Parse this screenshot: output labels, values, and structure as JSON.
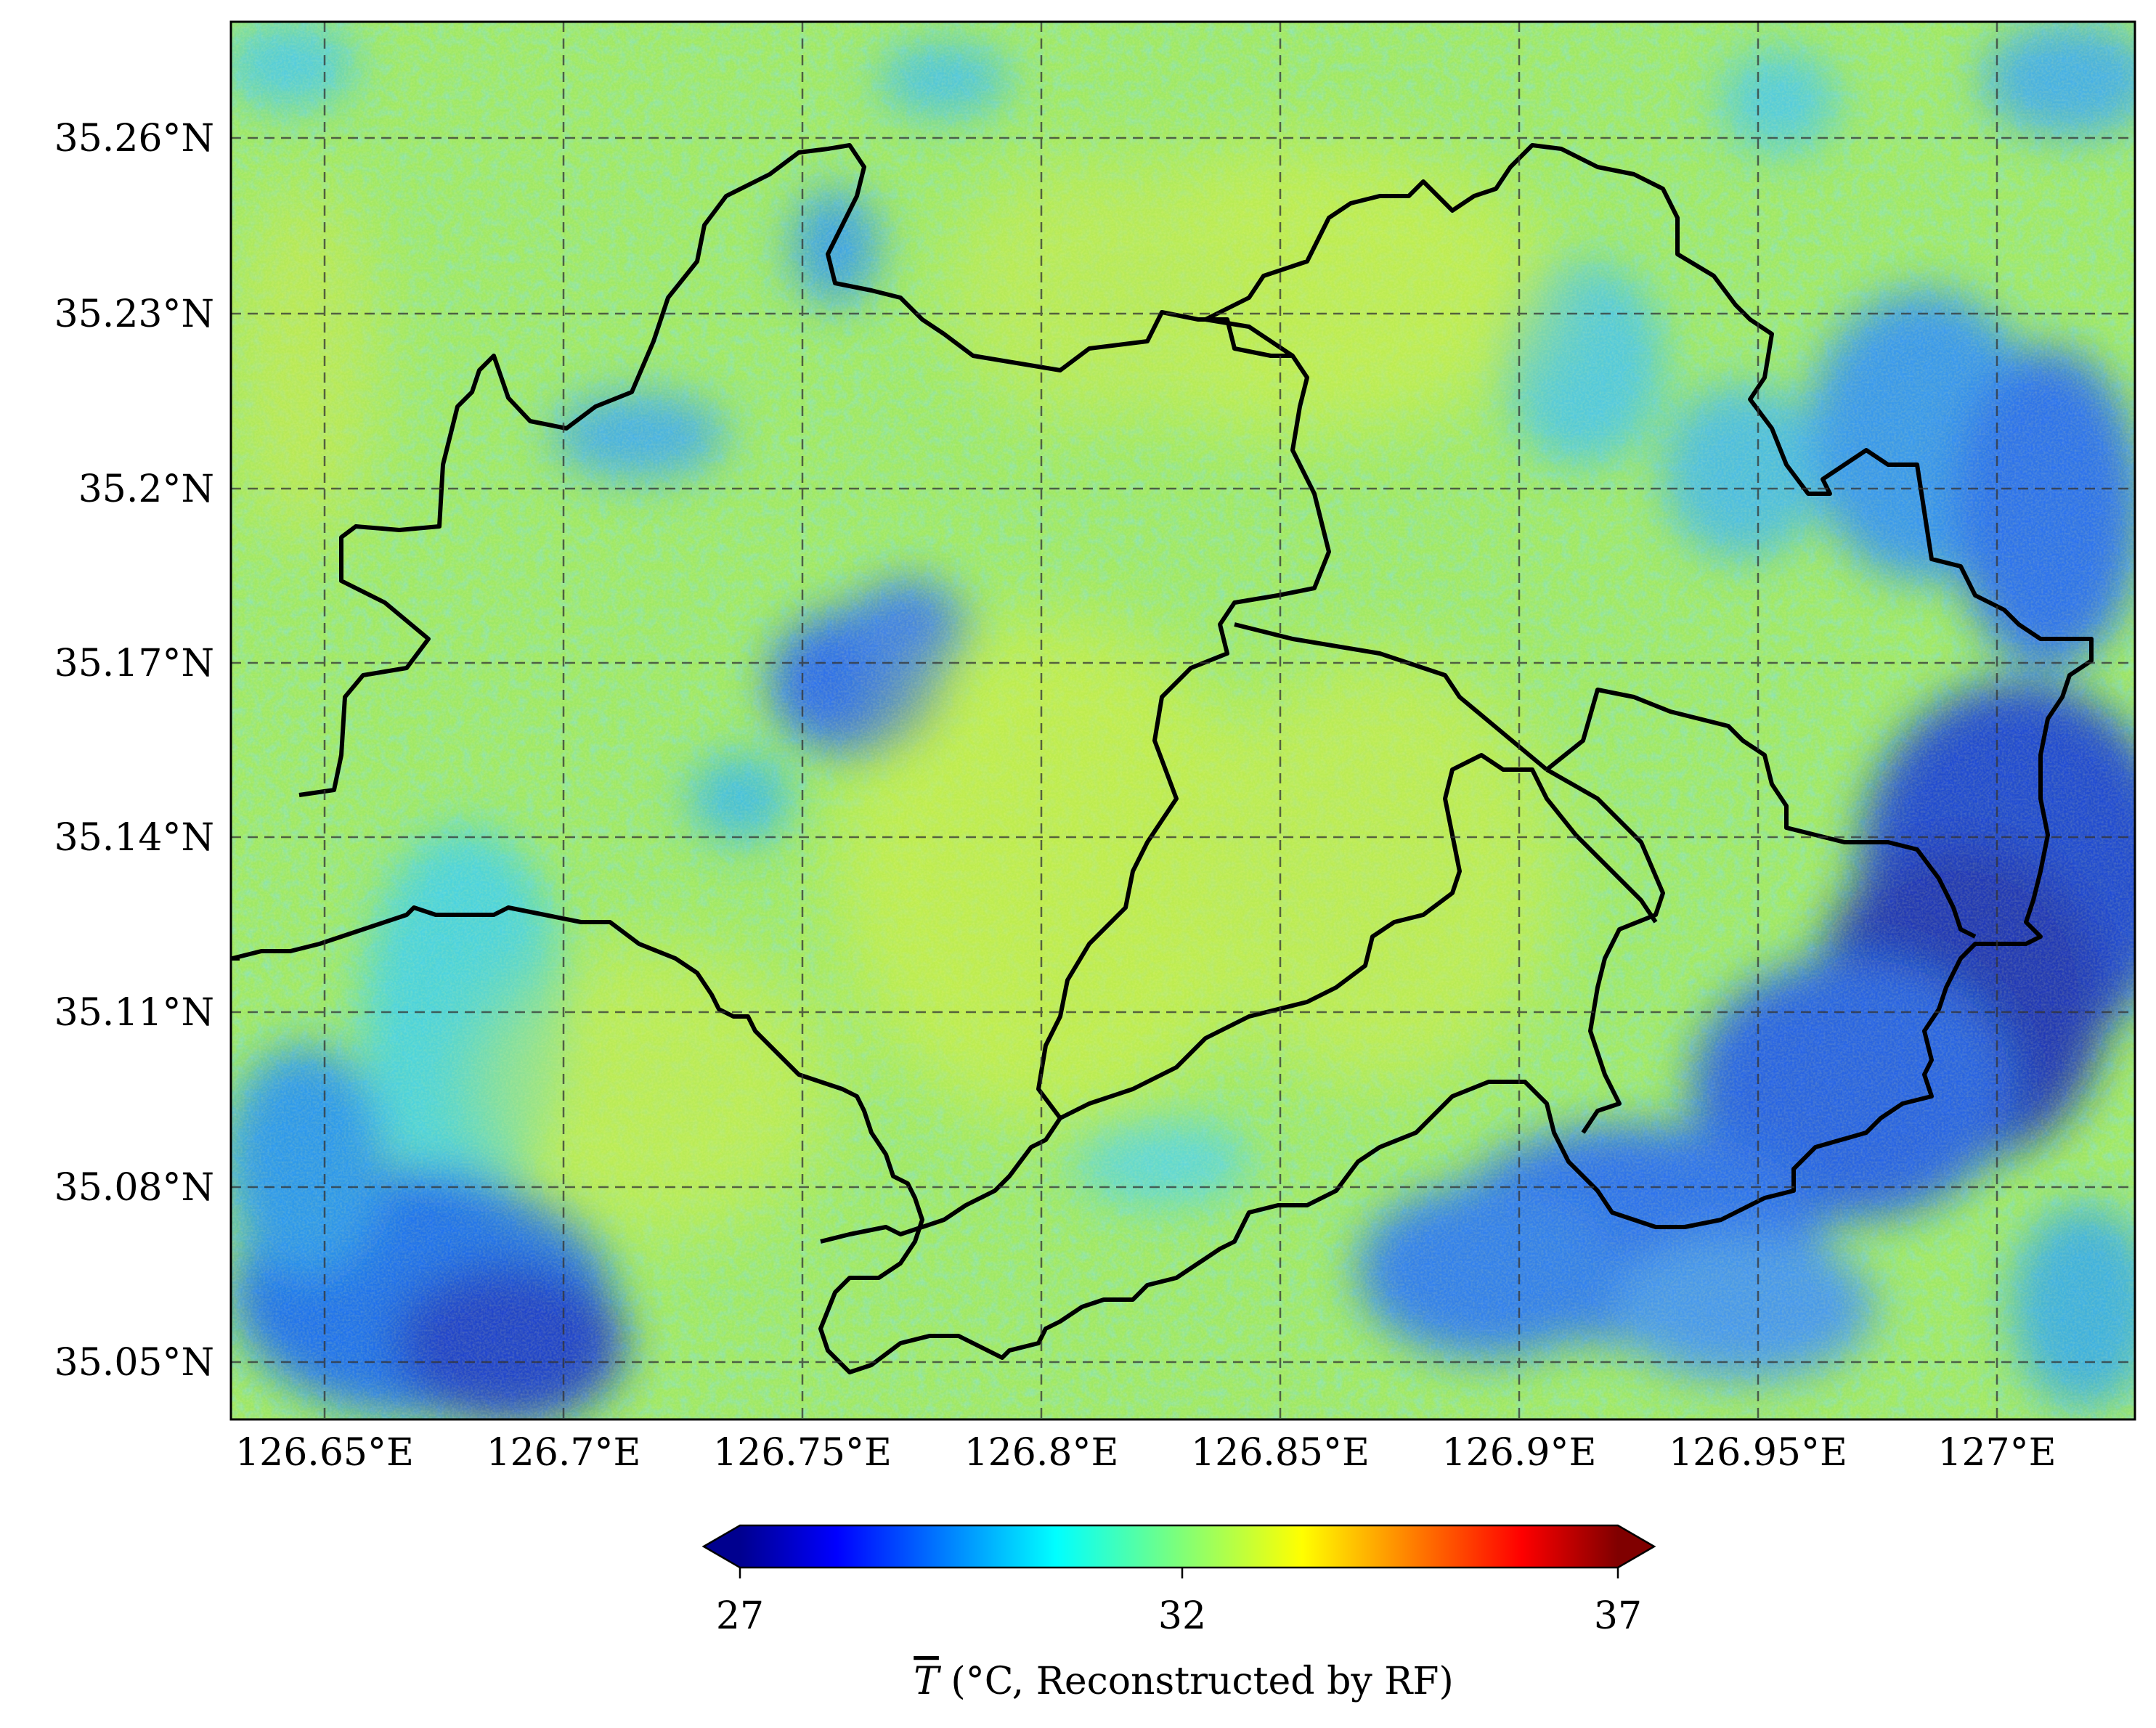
{
  "map": {
    "lon_ticks": [
      "126.65°E",
      "126.7°E",
      "126.75°E",
      "126.8°E",
      "126.85°E",
      "126.9°E",
      "126.95°E",
      "127°E"
    ],
    "lat_ticks": [
      "35.26°N",
      "35.23°N",
      "35.2°N",
      "35.17°N",
      "35.14°N",
      "35.11°N",
      "35.08°N",
      "35.05°N"
    ],
    "gridline_style": "dashed",
    "colormap": "jet",
    "colors": {
      "deep_blue": "#0000a8",
      "blue": "#1e6cff",
      "cyan": "#2fd6e8",
      "green": "#8ee86c",
      "yellow": "#e8f23c",
      "boundary": "#000000"
    }
  },
  "colorbar": {
    "ticks": [
      "27",
      "32",
      "37"
    ],
    "min": 27,
    "max": 37,
    "extend": "both",
    "label_prefix": "T",
    "label_suffix": " (°C, Reconstructed by RF)"
  }
}
